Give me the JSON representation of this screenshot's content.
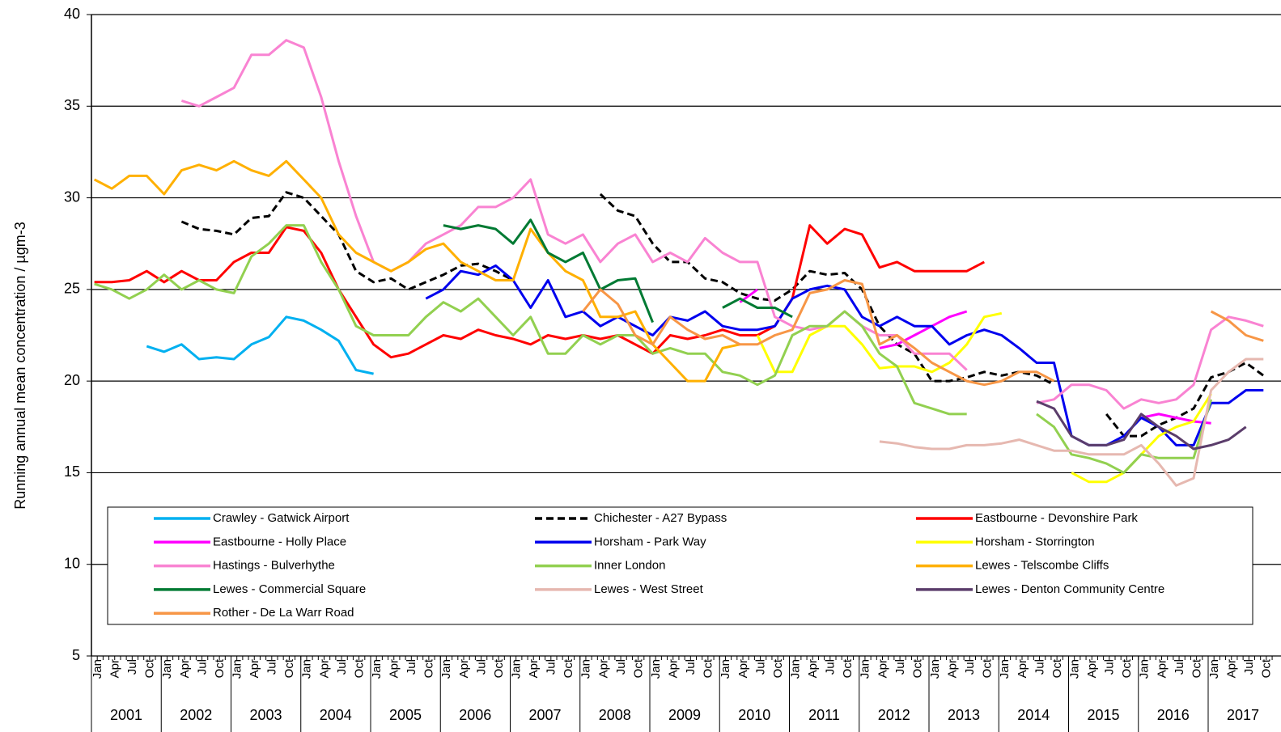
{
  "chart_data": {
    "type": "line",
    "y_label": "Running annual mean concentration / µgm-3",
    "categories": [
      "Jan",
      "Apr",
      "Jul",
      "Oct",
      "Jan",
      "Apr",
      "Jul",
      "Oct",
      "Jan",
      "Apr",
      "Jul",
      "Oct",
      "Jan",
      "Apr",
      "Jul",
      "Oct",
      "Jan",
      "Apr",
      "Jul",
      "Oct",
      "Jan",
      "Apr",
      "Jul",
      "Oct",
      "Jan",
      "Apr",
      "Jul",
      "Oct",
      "Jan",
      "Apr",
      "Jul",
      "Oct",
      "Jan",
      "Apr",
      "Jul",
      "Oct",
      "Jan",
      "Apr",
      "Jul",
      "Oct",
      "Jan",
      "Apr",
      "Jul",
      "Oct",
      "Jan",
      "Apr",
      "Jul",
      "Oct",
      "Jan",
      "Apr",
      "Jul",
      "Oct",
      "Jan",
      "Apr",
      "Jul",
      "Oct",
      "Jan",
      "Apr",
      "Jul",
      "Oct",
      "Jan",
      "Apr",
      "Jul",
      "Oct",
      "Jan",
      "Apr",
      "Jul",
      "Oct"
    ],
    "year_labels": [
      "2001",
      "2002",
      "2003",
      "2004",
      "2005",
      "2006",
      "2007",
      "2008",
      "2009",
      "2010",
      "2011",
      "2012",
      "2013",
      "2014",
      "2015",
      "2016",
      "2017"
    ],
    "ylim": [
      5,
      40
    ],
    "yticks": [
      5,
      10,
      15,
      20,
      25,
      30,
      35,
      40
    ],
    "grid": true,
    "series": [
      {
        "name": "Crawley - Gatwick Airport",
        "color": "#00b0f0",
        "values": [
          null,
          null,
          null,
          21.9,
          21.6,
          22.0,
          21.2,
          21.3,
          21.2,
          22.0,
          22.4,
          23.5,
          23.3,
          22.8,
          22.2,
          20.6,
          20.4,
          null,
          null,
          null,
          null,
          null,
          null,
          null,
          null,
          null,
          null,
          null,
          null,
          null,
          null,
          null,
          null,
          null,
          null,
          null,
          null,
          null,
          null,
          null,
          null,
          null,
          null,
          null,
          null,
          null,
          null,
          null,
          null,
          null,
          null,
          null,
          null,
          null,
          null,
          null,
          null,
          null,
          null,
          null,
          null,
          null,
          null,
          null,
          null,
          null,
          null,
          null
        ]
      },
      {
        "name": "Chichester - A27 Bypass",
        "color": "#000000",
        "dashed": true,
        "values": [
          null,
          null,
          null,
          null,
          null,
          28.7,
          28.3,
          28.2,
          28.0,
          28.9,
          29.0,
          30.3,
          30.0,
          29.0,
          28.0,
          26.0,
          25.4,
          25.6,
          25.0,
          25.4,
          25.8,
          26.3,
          26.4,
          26.0,
          25.5,
          null,
          null,
          null,
          null,
          30.2,
          29.3,
          29.0,
          27.5,
          26.5,
          26.5,
          25.6,
          25.4,
          24.8,
          24.5,
          24.4,
          25.0,
          26.0,
          25.8,
          25.9,
          25.0,
          23.0,
          22.0,
          21.5,
          20.0,
          20.0,
          20.2,
          20.5,
          20.3,
          20.5,
          20.3,
          19.8,
          null,
          null,
          18.2,
          17.0,
          17.0,
          17.6,
          18.0,
          18.5,
          20.2,
          20.5,
          21.0,
          20.3
        ]
      },
      {
        "name": "Eastbourne - Devonshire Park",
        "color": "#ff0000",
        "values": [
          25.4,
          25.4,
          25.5,
          26.0,
          25.4,
          26.0,
          25.5,
          25.5,
          26.5,
          27.0,
          27.0,
          28.4,
          28.2,
          27.0,
          25.0,
          23.5,
          22.0,
          21.3,
          21.5,
          22.0,
          22.5,
          22.3,
          22.8,
          22.5,
          22.3,
          22.0,
          22.5,
          22.3,
          22.5,
          22.3,
          22.5,
          22.0,
          21.5,
          22.5,
          22.3,
          22.5,
          22.8,
          22.5,
          22.5,
          23.0,
          24.5,
          28.5,
          27.5,
          28.3,
          28.0,
          26.2,
          26.5,
          26.0,
          26.0,
          26.0,
          26.0,
          26.5,
          null,
          null,
          null,
          null,
          null,
          null,
          null,
          null,
          null,
          null,
          null,
          null,
          null,
          null,
          null,
          null
        ]
      },
      {
        "name": "Eastbourne - Holly Place",
        "color": "#ff00ff",
        "values": [
          null,
          null,
          null,
          null,
          null,
          null,
          null,
          null,
          null,
          null,
          null,
          null,
          null,
          null,
          null,
          null,
          null,
          null,
          null,
          null,
          null,
          null,
          null,
          null,
          null,
          null,
          null,
          null,
          null,
          null,
          null,
          null,
          null,
          null,
          null,
          null,
          null,
          24.3,
          25.0,
          null,
          null,
          null,
          null,
          null,
          null,
          21.8,
          22.0,
          22.5,
          23.0,
          23.5,
          23.8,
          null,
          null,
          null,
          null,
          null,
          null,
          null,
          null,
          null,
          18.0,
          18.2,
          18.0,
          17.8,
          17.7,
          null,
          null,
          null
        ]
      },
      {
        "name": "Horsham - Park Way",
        "color": "#0000ee",
        "values": [
          null,
          null,
          null,
          null,
          null,
          null,
          null,
          null,
          null,
          null,
          null,
          null,
          null,
          null,
          null,
          null,
          null,
          null,
          null,
          24.5,
          25.0,
          26.0,
          25.8,
          26.3,
          25.5,
          24.0,
          25.5,
          23.5,
          23.8,
          23.0,
          23.5,
          23.0,
          22.5,
          23.5,
          23.3,
          23.8,
          23.0,
          22.8,
          22.8,
          23.0,
          24.5,
          25.0,
          25.2,
          25.0,
          23.5,
          23.0,
          23.5,
          23.0,
          23.0,
          22.0,
          22.5,
          22.8,
          22.5,
          21.8,
          21.0,
          21.0,
          17.0,
          16.5,
          16.5,
          17.0,
          18.0,
          17.5,
          16.5,
          16.5,
          18.8,
          18.8,
          19.5,
          19.5
        ]
      },
      {
        "name": "Horsham - Storrington",
        "color": "#ffff00",
        "values": [
          null,
          null,
          null,
          null,
          null,
          null,
          null,
          null,
          null,
          null,
          null,
          null,
          null,
          null,
          null,
          null,
          null,
          null,
          null,
          null,
          null,
          null,
          null,
          null,
          null,
          null,
          null,
          null,
          null,
          null,
          null,
          null,
          null,
          null,
          null,
          null,
          null,
          null,
          22.5,
          20.5,
          20.5,
          22.5,
          23.0,
          23.0,
          22.0,
          20.7,
          20.8,
          20.8,
          20.5,
          21.0,
          22.0,
          23.5,
          23.7,
          null,
          null,
          null,
          15.0,
          14.5,
          14.5,
          15.0,
          16.0,
          17.0,
          17.5,
          17.8,
          19.3,
          null,
          null,
          null
        ]
      },
      {
        "name": "Hastings - Bulverhythe",
        "color": "#f983d2",
        "values": [
          null,
          null,
          null,
          null,
          null,
          35.3,
          35.0,
          35.5,
          36.0,
          37.8,
          37.8,
          38.6,
          38.2,
          35.5,
          32.0,
          29.0,
          26.5,
          26.0,
          26.5,
          27.5,
          28.0,
          28.5,
          29.5,
          29.5,
          30.0,
          31.0,
          28.0,
          27.5,
          28.0,
          26.5,
          27.5,
          28.0,
          26.5,
          27.0,
          26.5,
          27.8,
          27.0,
          26.5,
          26.5,
          23.5,
          23.0,
          22.8,
          23.0,
          23.8,
          23.0,
          22.5,
          22.5,
          21.5,
          21.5,
          21.5,
          20.6,
          null,
          null,
          null,
          18.8,
          19.0,
          19.8,
          19.8,
          19.5,
          18.5,
          19.0,
          18.8,
          19.0,
          19.8,
          22.8,
          23.5,
          23.3,
          23.0
        ]
      },
      {
        "name": "Inner London",
        "color": "#92d050",
        "values": [
          25.3,
          25.0,
          24.5,
          25.0,
          25.8,
          25.0,
          25.5,
          25.0,
          24.8,
          26.8,
          27.5,
          28.5,
          28.5,
          26.5,
          25.0,
          23.0,
          22.5,
          22.5,
          22.5,
          23.5,
          24.3,
          23.8,
          24.5,
          23.5,
          22.5,
          23.5,
          21.5,
          21.5,
          22.5,
          22.0,
          22.5,
          22.5,
          21.5,
          21.8,
          21.5,
          21.5,
          20.5,
          20.3,
          19.8,
          20.3,
          22.5,
          23.0,
          23.0,
          23.8,
          23.0,
          21.5,
          20.8,
          18.8,
          18.5,
          18.2,
          18.2,
          null,
          null,
          null,
          18.2,
          17.5,
          16.0,
          15.8,
          15.5,
          15.0,
          16.0,
          15.8,
          15.8,
          15.8,
          19.0,
          null,
          null,
          null
        ]
      },
      {
        "name": "Lewes - Telscombe Cliffs",
        "color": "#ffb000",
        "values": [
          31.0,
          30.5,
          31.2,
          31.2,
          30.2,
          31.5,
          31.8,
          31.5,
          32.0,
          31.5,
          31.2,
          32.0,
          31.0,
          30.0,
          28.0,
          27.0,
          26.5,
          26.0,
          26.5,
          27.2,
          27.5,
          26.5,
          26.0,
          25.5,
          25.5,
          28.3,
          27.0,
          26.0,
          25.5,
          23.5,
          23.5,
          23.8,
          22.0,
          21.0,
          20.0,
          20.0,
          21.8,
          22.0,
          null,
          null,
          null,
          null,
          null,
          null,
          null,
          null,
          null,
          null,
          null,
          null,
          null,
          null,
          null,
          null,
          null,
          null,
          null,
          null,
          null,
          null,
          null,
          null,
          null,
          null,
          null,
          null,
          null,
          null
        ]
      },
      {
        "name": "Lewes - Commercial Square",
        "color": "#007a33",
        "values": [
          null,
          null,
          null,
          null,
          null,
          null,
          null,
          null,
          null,
          null,
          null,
          null,
          null,
          null,
          null,
          null,
          null,
          null,
          null,
          null,
          28.5,
          28.3,
          28.5,
          28.3,
          27.5,
          28.8,
          27.0,
          26.5,
          27.0,
          25.0,
          25.5,
          25.6,
          23.2,
          null,
          null,
          null,
          24.0,
          24.5,
          24.0,
          24.0,
          23.5,
          null,
          null,
          null,
          null,
          null,
          null,
          null,
          null,
          null,
          null,
          null,
          null,
          null,
          null,
          null,
          null,
          null,
          null,
          null,
          null,
          null,
          null,
          null,
          null,
          null,
          null,
          null
        ]
      },
      {
        "name": "Lewes - West Street",
        "color": "#e6b8b0",
        "values": [
          null,
          null,
          null,
          null,
          null,
          null,
          null,
          null,
          null,
          null,
          null,
          null,
          null,
          null,
          null,
          null,
          null,
          null,
          null,
          null,
          null,
          null,
          null,
          null,
          null,
          null,
          null,
          null,
          null,
          null,
          null,
          null,
          null,
          null,
          null,
          null,
          null,
          null,
          null,
          null,
          null,
          null,
          null,
          null,
          null,
          16.7,
          16.6,
          16.4,
          16.3,
          16.3,
          16.5,
          16.5,
          16.6,
          16.8,
          16.5,
          16.2,
          16.2,
          16.0,
          16.0,
          16.0,
          16.5,
          15.5,
          14.3,
          14.7,
          19.5,
          20.5,
          21.2,
          21.2
        ]
      },
      {
        "name": "Lewes - Denton Community Centre",
        "color": "#5b3d6b",
        "values": [
          null,
          null,
          null,
          null,
          null,
          null,
          null,
          null,
          null,
          null,
          null,
          null,
          null,
          null,
          null,
          null,
          null,
          null,
          null,
          null,
          null,
          null,
          null,
          null,
          null,
          null,
          null,
          null,
          null,
          null,
          null,
          null,
          null,
          null,
          null,
          null,
          null,
          null,
          null,
          null,
          null,
          null,
          null,
          null,
          null,
          null,
          null,
          null,
          null,
          null,
          null,
          null,
          null,
          null,
          18.9,
          18.5,
          17.0,
          16.5,
          16.5,
          16.8,
          18.2,
          17.5,
          17.0,
          16.3,
          16.5,
          16.8,
          17.5,
          null
        ]
      },
      {
        "name": "Rother - De La Warr Road",
        "color": "#f79646",
        "values": [
          null,
          null,
          null,
          null,
          null,
          null,
          null,
          null,
          null,
          null,
          null,
          null,
          null,
          null,
          null,
          null,
          null,
          null,
          null,
          null,
          null,
          null,
          null,
          null,
          null,
          null,
          null,
          null,
          23.8,
          25.0,
          24.2,
          22.5,
          22.0,
          23.5,
          22.8,
          22.3,
          22.5,
          22.0,
          22.0,
          22.5,
          22.8,
          24.8,
          25.0,
          25.5,
          25.3,
          22.0,
          22.5,
          21.8,
          21.0,
          20.5,
          20.0,
          19.8,
          20.0,
          20.5,
          20.5,
          20.0,
          null,
          null,
          null,
          null,
          null,
          null,
          null,
          null,
          23.8,
          23.3,
          22.5,
          22.2
        ]
      }
    ]
  }
}
